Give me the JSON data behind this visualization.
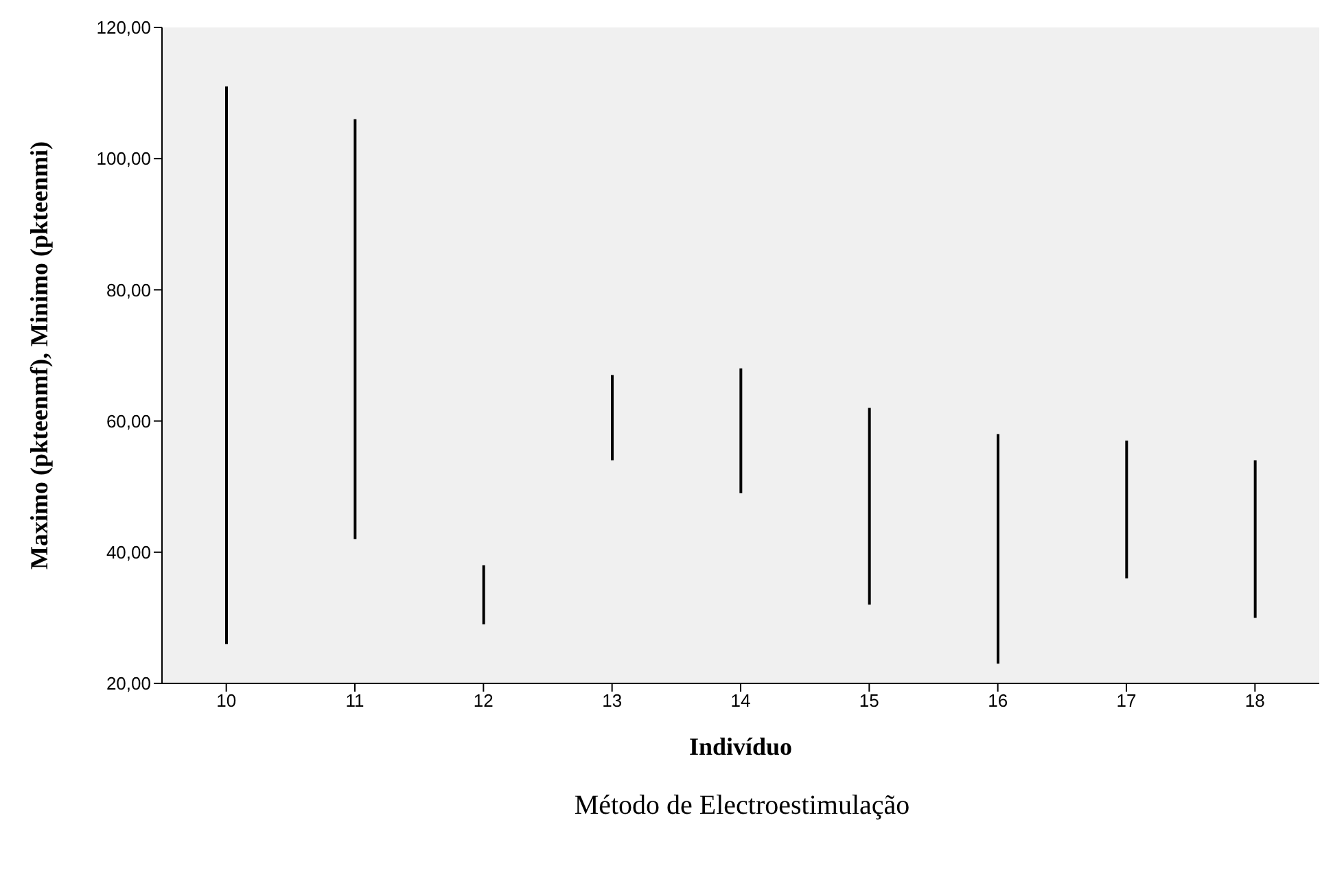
{
  "chart_data": {
    "type": "bar",
    "xlabel": "Indivíduo",
    "ylabel": "Maximo (pkteenmf), Minimo (pkteenmi)",
    "annotations": [
      "Método de Electroestimulação"
    ],
    "categories": [
      "10",
      "11",
      "12",
      "13",
      "14",
      "15",
      "16",
      "17",
      "18"
    ],
    "base": [
      26,
      42,
      29,
      54,
      49,
      32,
      23,
      36,
      30
    ],
    "values": [
      85,
      64,
      9,
      13,
      19,
      30,
      35,
      21,
      24
    ],
    "color": "#000000",
    "ylim": [
      20,
      120
    ],
    "yticks": [
      {
        "value": 20,
        "label": "20,00"
      },
      {
        "value": 40,
        "label": "40,00"
      },
      {
        "value": 60,
        "label": "60,00"
      },
      {
        "value": 80,
        "label": "80,00"
      },
      {
        "value": 100,
        "label": "100,00"
      },
      {
        "value": 120,
        "label": "120,00"
      }
    ],
    "grid": false,
    "legend": false
  }
}
